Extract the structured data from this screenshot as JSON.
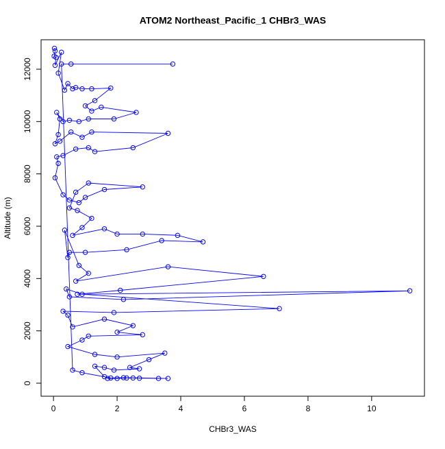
{
  "chart_data": {
    "type": "line",
    "title": "ATOM2 Northeast_Pacific_1 CHBr3_WAS",
    "x_label": "CHBr3_WAS",
    "y_label": "Altitude (m)",
    "color": "#0000ff",
    "markers": true,
    "xlim": [
      -0.39,
      11.66
    ],
    "ylim": [
      -498,
      13126
    ],
    "xticks": [
      0,
      2,
      4,
      6,
      8,
      10
    ],
    "yticks": [
      0,
      2000,
      4000,
      6000,
      8000,
      10000,
      12000
    ],
    "x": [
      0.03,
      0.05,
      0.02,
      0.08,
      0.05,
      0.25,
      0.15,
      0.35,
      0.45,
      0.6,
      0.7,
      0.9,
      1.2,
      1.8,
      1.3,
      1.0,
      1.2,
      1.5,
      2.6,
      1.9,
      1.1,
      0.8,
      0.5,
      0.3,
      0.1,
      0.2,
      0.15,
      0.05,
      0.2,
      0.55,
      0.9,
      1.2,
      3.6,
      2.5,
      1.3,
      1.1,
      0.7,
      0.3,
      0.1,
      0.15,
      0.05,
      0.3,
      0.5,
      0.8,
      1.0,
      1.6,
      2.8,
      1.1,
      0.7,
      0.5,
      0.75,
      1.2,
      0.9,
      0.6,
      1.6,
      2.0,
      2.8,
      3.9,
      4.7,
      3.4,
      2.3,
      1.0,
      0.5,
      0.45,
      0.35,
      0.8,
      1.1,
      0.7,
      3.6,
      6.6,
      2.1,
      0.75,
      11.2,
      2.2,
      0.5,
      0.4,
      0.9,
      7.1,
      1.9,
      0.3,
      0.45,
      0.6,
      1.6,
      2.5,
      2.0,
      2.8,
      1.1,
      0.9,
      0.45,
      1.3,
      2.0,
      3.5,
      3.0,
      2.4,
      2.7,
      1.9,
      1.6,
      1.3,
      1.6,
      1.7,
      2.0,
      2.3,
      2.5,
      2.7,
      3.3,
      3.6,
      2.2,
      1.8,
      0.9,
      0.6,
      0.25,
      0.55,
      3.75
    ],
    "values": [
      12800,
      12700,
      12500,
      12450,
      12150,
      12650,
      11850,
      11200,
      11450,
      11250,
      11300,
      11250,
      11250,
      11280,
      10800,
      10600,
      10400,
      10550,
      10350,
      10100,
      10100,
      10000,
      10050,
      10000,
      10350,
      10100,
      9500,
      9150,
      9250,
      9600,
      9400,
      9600,
      9550,
      9000,
      8850,
      9000,
      8950,
      8700,
      8650,
      8400,
      7850,
      7200,
      7000,
      6900,
      7100,
      7400,
      7500,
      7650,
      7300,
      6700,
      6600,
      6300,
      5950,
      5650,
      5900,
      5700,
      5700,
      5650,
      5400,
      5450,
      5100,
      5000,
      5000,
      4800,
      5850,
      4500,
      4200,
      3900,
      4450,
      4080,
      3550,
      3400,
      3530,
      3200,
      3300,
      3600,
      3400,
      2850,
      2700,
      2750,
      2600,
      2150,
      2450,
      2200,
      1950,
      1850,
      1800,
      1650,
      1400,
      1100,
      1000,
      1150,
      900,
      600,
      550,
      500,
      600,
      650,
      250,
      180,
      180,
      200,
      200,
      190,
      180,
      180,
      210,
      200,
      400,
      500,
      12200,
      12200,
      12200
    ]
  }
}
